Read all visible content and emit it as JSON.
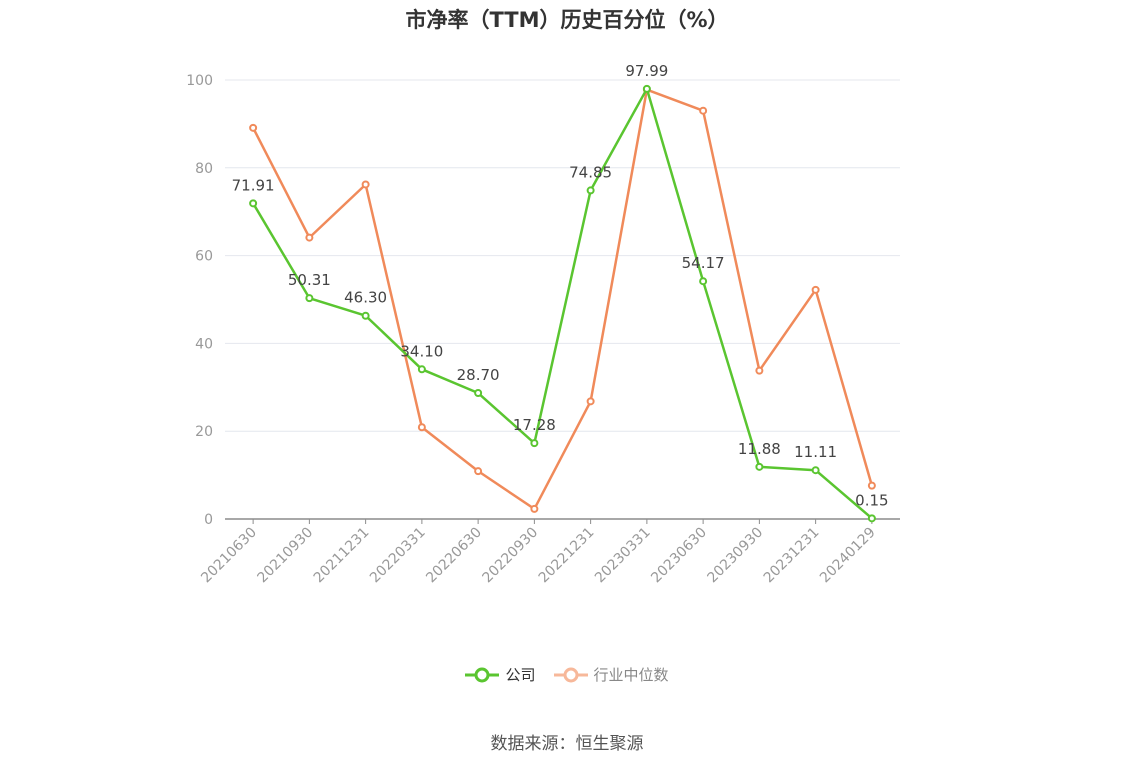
{
  "chart_data": {
    "type": "line",
    "title": "市净率（TTM）历史百分位（%）",
    "categories": [
      "20210630",
      "20210930",
      "20211231",
      "20220331",
      "20220630",
      "20220930",
      "20221231",
      "20230331",
      "20230630",
      "20230930",
      "20231231",
      "20240129"
    ],
    "ylim": [
      0,
      100
    ],
    "yticks": [
      0,
      20,
      40,
      60,
      80,
      100
    ],
    "grid": true,
    "legend_position": "bottom",
    "series": [
      {
        "name": "公司",
        "color": "#5ac530",
        "show_labels": true,
        "values": [
          71.91,
          50.31,
          46.3,
          34.1,
          28.7,
          17.28,
          74.85,
          97.99,
          54.17,
          11.88,
          11.11,
          0.15
        ],
        "labels": [
          "71.91",
          "50.31",
          "46.30",
          "34.10",
          "28.70",
          "17.28",
          "74.85",
          "97.99",
          "54.17",
          "11.88",
          "11.11",
          "0.15"
        ]
      },
      {
        "name": "行业中位数",
        "color": "#f08a5a",
        "show_labels": false,
        "values": [
          89.1,
          64.1,
          76.2,
          20.9,
          10.9,
          2.3,
          26.8,
          97.8,
          93.0,
          33.8,
          52.2,
          7.6
        ]
      }
    ]
  },
  "source": "数据来源：恒生聚源"
}
